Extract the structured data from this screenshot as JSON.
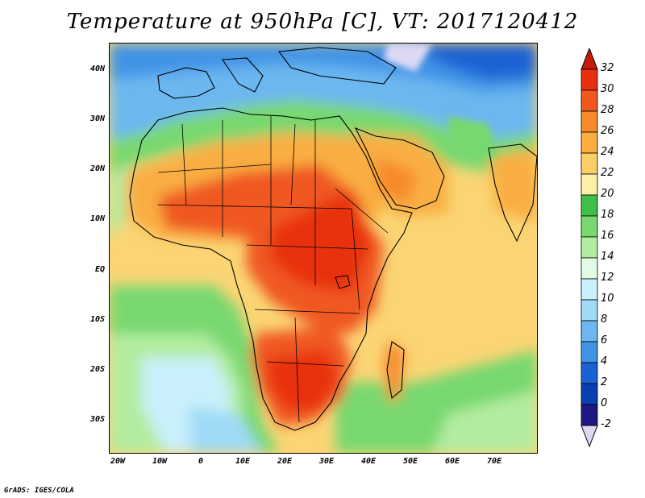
{
  "map": {
    "title": "Temperature at 950hPa [C], VT: 2017120412",
    "lat_labels": [
      "40N",
      "30N",
      "20N",
      "10N",
      "EQ",
      "10S",
      "20S",
      "30S"
    ],
    "lon_labels": [
      "20W",
      "10W",
      "0",
      "10E",
      "20E",
      "30E",
      "40E",
      "50E",
      "60E",
      "70E"
    ],
    "colorbar_labels": [
      "32",
      "30",
      "28",
      "26",
      "24",
      "22",
      "20",
      "18",
      "16",
      "14",
      "12",
      "10",
      "8",
      "6",
      "4",
      "2",
      "0",
      "-2"
    ],
    "colorbar_colors": [
      "#e83010",
      "#f05820",
      "#f68a2c",
      "#f9ae42",
      "#fbcf67",
      "#fdf0a6",
      "#3fbf48",
      "#78d86f",
      "#b2eca0",
      "#e4fbe3",
      "#c9f0fb",
      "#9fdaf7",
      "#6cb7f0",
      "#4093e6",
      "#1a62d4",
      "#0a3fb0",
      "#1a1a80"
    ],
    "colorbar_top_color": "#c41c08",
    "colorbar_bottom_color": "#ddd9f4",
    "credit": "GrADS: IGES/COLA"
  }
}
